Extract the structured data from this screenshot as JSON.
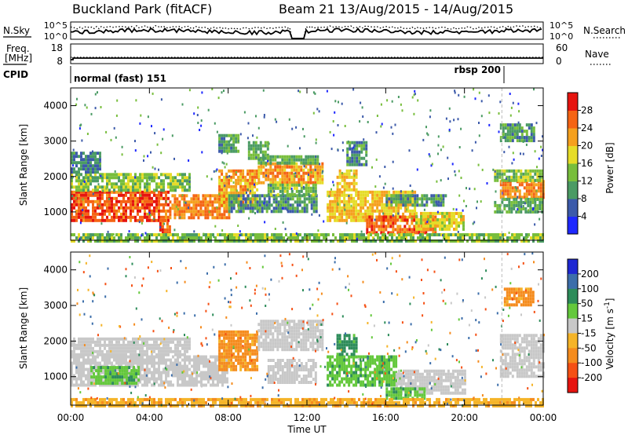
{
  "header": {
    "station": "Buckland Park (fitACF)",
    "beam": "Beam 21",
    "dates": "13/Aug/2015 - 14/Aug/2015"
  },
  "top_panels": {
    "nsky_label": "N.Sky",
    "nsky_ticks": [
      "10^5",
      "10^0"
    ],
    "nsearch_label": "N.Search",
    "nsearch_ticks": [
      "10^5",
      "10^0"
    ],
    "freq_label_1": "Freq.",
    "freq_label_2": "[MHz]",
    "freq_ticks": [
      "18",
      "8"
    ],
    "nave_label": "Nave",
    "nave_ticks": [
      "60",
      "0"
    ],
    "cpid_label": "CPID",
    "cpid_segments": [
      {
        "label": "normal (fast) 151",
        "start_hour": 0,
        "end_hour": 21.9
      },
      {
        "label": "rbsp 200",
        "start_hour": 21.9,
        "end_hour": 24
      }
    ]
  },
  "chart_data": [
    {
      "type": "heatmap",
      "name": "power",
      "ylabel": "Slant Range [km]",
      "xlabel": "Time UT",
      "xlim": [
        0,
        24
      ],
      "ylim": [
        200,
        4500
      ],
      "x_ticks": [
        "00:00",
        "04:00",
        "08:00",
        "12:00",
        "16:00",
        "20:00",
        "00:00"
      ],
      "y_ticks": [
        1000,
        2000,
        3000,
        4000
      ],
      "colorbar": {
        "label": "Power [dB]",
        "ticks": [
          "4",
          "8",
          "12",
          "16",
          "20",
          "24",
          "28"
        ],
        "colors": [
          "#1e28ff",
          "#3c5aaa",
          "#4b9b64",
          "#78be3c",
          "#e6dc28",
          "#f5a01e",
          "#f56414",
          "#e6140f"
        ]
      },
      "regions": [
        {
          "t0": 0.0,
          "t1": 5.0,
          "r0": 800,
          "r1": 1600,
          "value": 27
        },
        {
          "t0": 5.0,
          "t1": 8.0,
          "r0": 800,
          "r1": 1500,
          "value": 24
        },
        {
          "t0": 0.0,
          "t1": 6.0,
          "r0": 1600,
          "r1": 2100,
          "value": 14
        },
        {
          "t0": 0.0,
          "t1": 1.5,
          "r0": 2100,
          "r1": 2700,
          "value": 8
        },
        {
          "t0": 4.5,
          "t1": 5.0,
          "r0": 400,
          "r1": 800,
          "value": 26
        },
        {
          "t0": 7.5,
          "t1": 9.5,
          "r0": 1200,
          "r1": 2200,
          "value": 22
        },
        {
          "t0": 9.0,
          "t1": 10.0,
          "r0": 2500,
          "r1": 3000,
          "value": 12
        },
        {
          "t0": 7.5,
          "t1": 8.5,
          "r0": 2700,
          "r1": 3200,
          "value": 10
        },
        {
          "t0": 9.5,
          "t1": 12.8,
          "r0": 1800,
          "r1": 2400,
          "value": 22
        },
        {
          "t0": 9.5,
          "t1": 12.5,
          "r0": 2400,
          "r1": 2600,
          "value": 12
        },
        {
          "t0": 8.0,
          "t1": 12.5,
          "r0": 1000,
          "r1": 1500,
          "value": 10
        },
        {
          "t0": 10.0,
          "t1": 12.5,
          "r0": 1500,
          "r1": 1800,
          "value": 14
        },
        {
          "t0": 13.0,
          "t1": 17.5,
          "r0": 800,
          "r1": 1600,
          "value": 20
        },
        {
          "t0": 13.5,
          "t1": 14.5,
          "r0": 1600,
          "r1": 2200,
          "value": 20
        },
        {
          "t0": 14.0,
          "t1": 15.0,
          "r0": 2300,
          "r1": 3000,
          "value": 10
        },
        {
          "t0": 15.0,
          "t1": 18.5,
          "r0": 400,
          "r1": 900,
          "value": 26
        },
        {
          "t0": 17.5,
          "t1": 20.0,
          "r0": 500,
          "r1": 1000,
          "value": 18
        },
        {
          "t0": 16.0,
          "t1": 19.0,
          "r0": 1200,
          "r1": 1500,
          "value": 10
        },
        {
          "t0": 21.8,
          "t1": 24.0,
          "r0": 1400,
          "r1": 1900,
          "value": 24
        },
        {
          "t0": 21.5,
          "t1": 24.0,
          "r0": 1000,
          "r1": 1400,
          "value": 12
        },
        {
          "t0": 21.5,
          "t1": 24.0,
          "r0": 1900,
          "r1": 2200,
          "value": 14
        },
        {
          "t0": 21.8,
          "t1": 23.5,
          "r0": 3000,
          "r1": 3500,
          "value": 10
        },
        {
          "t0": 0.0,
          "t1": 24.0,
          "r0": 200,
          "r1": 400,
          "value": 14
        }
      ]
    },
    {
      "type": "heatmap",
      "name": "velocity",
      "ylabel": "Slant Range [km]",
      "xlabel": "Time UT",
      "xlim": [
        0,
        24
      ],
      "ylim": [
        200,
        4500
      ],
      "x_ticks": [
        "00:00",
        "04:00",
        "08:00",
        "12:00",
        "16:00",
        "20:00",
        "00:00"
      ],
      "y_ticks": [
        1000,
        2000,
        3000,
        4000
      ],
      "colorbar": {
        "label": "Velocity [m s^-1]",
        "ticks": [
          "200",
          "100",
          "50",
          "15",
          "-15",
          "-50",
          "-100",
          "-200"
        ],
        "colors": [
          "#1e28d2",
          "#3c6eaa",
          "#2d8c5a",
          "#64c83c",
          "#c8c8c8",
          "#f5b428",
          "#f58c1e",
          "#f55014",
          "#e6140f"
        ]
      },
      "regions": [
        {
          "t0": 0.0,
          "t1": 8.0,
          "r0": 800,
          "r1": 1600,
          "value": 0
        },
        {
          "t0": 0.0,
          "t1": 6.0,
          "r0": 1600,
          "r1": 2100,
          "value": 0
        },
        {
          "t0": 1.0,
          "t1": 3.5,
          "r0": 800,
          "r1": 1300,
          "value": 40
        },
        {
          "t0": 7.5,
          "t1": 9.5,
          "r0": 1200,
          "r1": 2300,
          "value": -60
        },
        {
          "t0": 9.5,
          "t1": 12.8,
          "r0": 1800,
          "r1": 2600,
          "value": 0
        },
        {
          "t0": 13.0,
          "t1": 16.5,
          "r0": 800,
          "r1": 1600,
          "value": 40
        },
        {
          "t0": 10.0,
          "t1": 12.5,
          "r0": 800,
          "r1": 1500,
          "value": 0
        },
        {
          "t0": 13.5,
          "t1": 14.5,
          "r0": 1600,
          "r1": 2200,
          "value": 60
        },
        {
          "t0": 16.5,
          "t1": 20.0,
          "r0": 500,
          "r1": 1200,
          "value": 0
        },
        {
          "t0": 16.0,
          "t1": 18.0,
          "r0": 400,
          "r1": 700,
          "value": 40
        },
        {
          "t0": 21.8,
          "t1": 24.0,
          "r0": 1000,
          "r1": 2200,
          "value": 0
        },
        {
          "t0": 22.0,
          "t1": 23.5,
          "r0": 3000,
          "r1": 3500,
          "value": -60
        },
        {
          "t0": 0.0,
          "t1": 24.0,
          "r0": 200,
          "r1": 400,
          "value": -40
        }
      ]
    }
  ]
}
